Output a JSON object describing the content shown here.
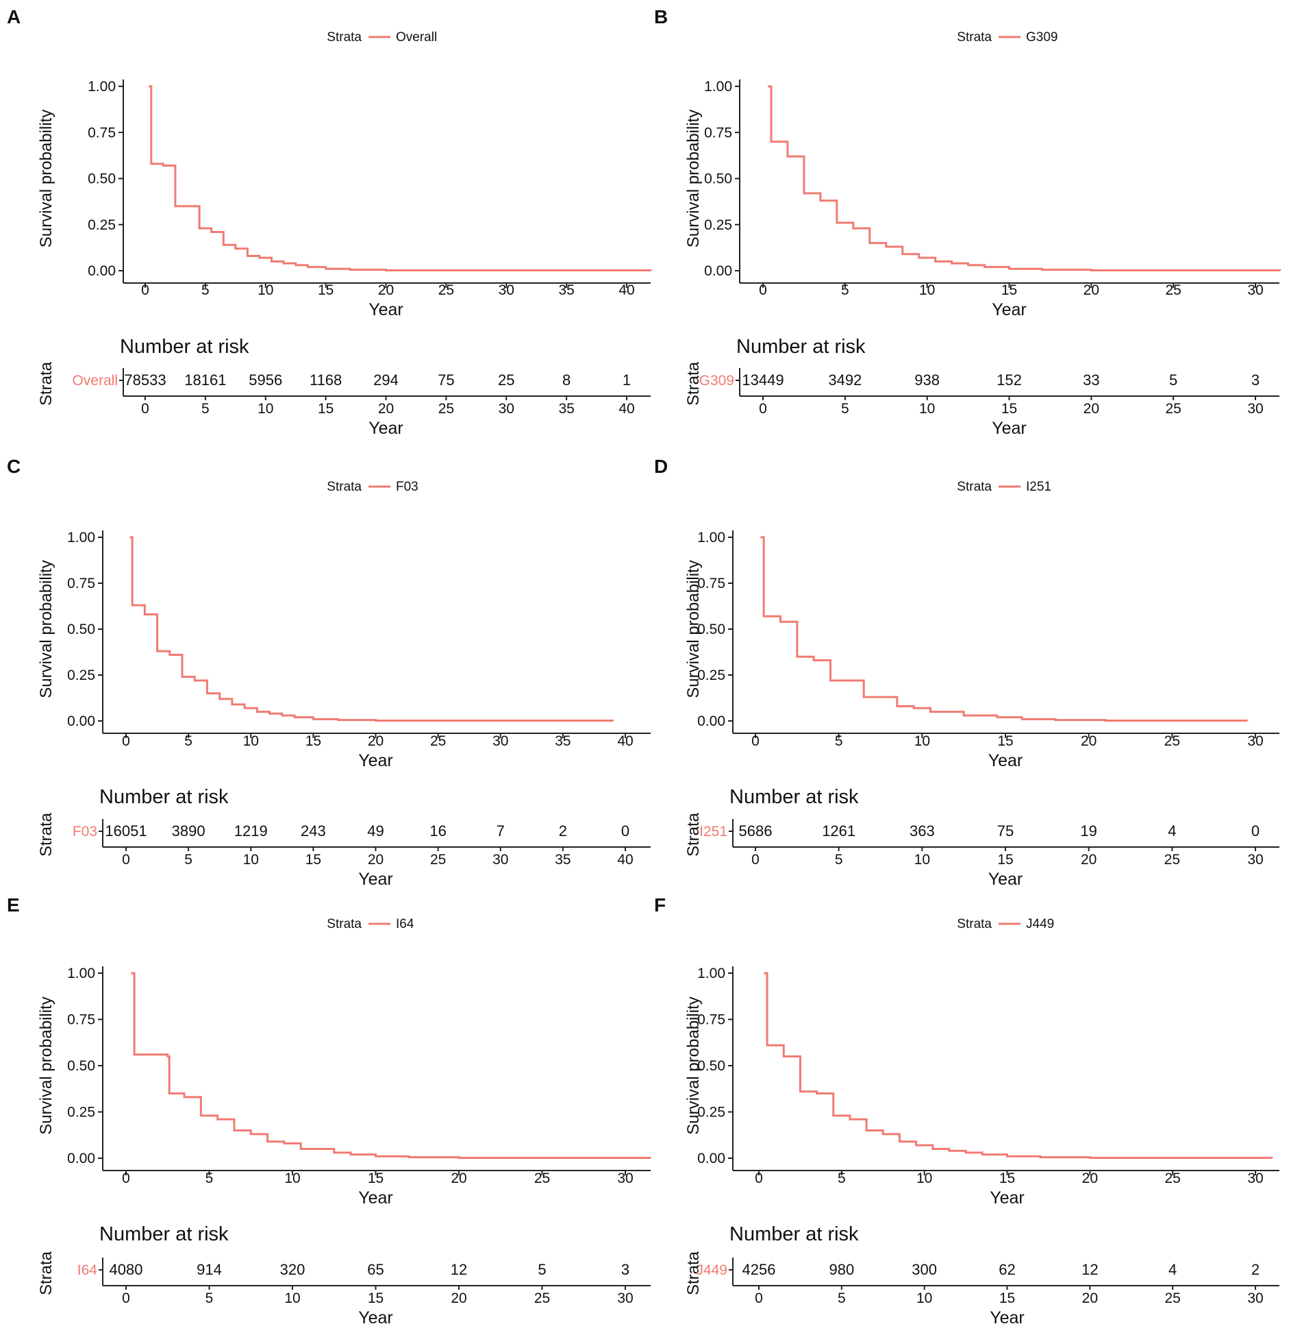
{
  "figure": {
    "curve_color": "#f07b72",
    "axis_color": "#222222",
    "text_color": "#111111",
    "legend_title": "Strata",
    "ylabel": "Survival probability",
    "xlabel": "Year",
    "risk_title": "Number at risk",
    "risk_ylabel": "Strata",
    "yticks": [
      "1.00",
      "0.75",
      "0.50",
      "0.25",
      "0.00"
    ]
  },
  "chart_data": [
    {
      "panel": "A",
      "type": "line",
      "stratum": "Overall",
      "title": "",
      "xlabel": "Year",
      "ylabel": "Survival probability",
      "xlim": [
        -2,
        42
      ],
      "ylim": [
        0,
        1
      ],
      "x_ticks": [
        0,
        5,
        10,
        15,
        20,
        25,
        30,
        35,
        40
      ],
      "steps": [
        [
          0.3,
          1.0
        ],
        [
          0.5,
          0.58
        ],
        [
          1.5,
          0.57
        ],
        [
          2.5,
          0.35
        ],
        [
          4.5,
          0.23
        ],
        [
          5.5,
          0.21
        ],
        [
          6.5,
          0.14
        ],
        [
          7.5,
          0.12
        ],
        [
          8.5,
          0.08
        ],
        [
          9.5,
          0.07
        ],
        [
          10.5,
          0.05
        ],
        [
          11.5,
          0.04
        ],
        [
          12.5,
          0.03
        ],
        [
          13.5,
          0.02
        ],
        [
          15,
          0.01
        ],
        [
          17,
          0.005
        ],
        [
          20,
          0.002
        ],
        [
          42,
          0.0
        ]
      ],
      "risk_times": [
        0,
        5,
        10,
        15,
        20,
        25,
        30,
        35,
        40
      ],
      "risk_values": [
        "78533",
        "18161",
        "5956",
        "1168",
        "294",
        "75",
        "25",
        "8",
        "1"
      ]
    },
    {
      "panel": "B",
      "type": "line",
      "stratum": "G309",
      "title": "",
      "xlabel": "Year",
      "ylabel": "Survival probability",
      "xlim": [
        -1.5,
        31.5
      ],
      "ylim": [
        0,
        1
      ],
      "x_ticks": [
        0,
        5,
        10,
        15,
        20,
        25,
        30
      ],
      "steps": [
        [
          0.3,
          1.0
        ],
        [
          0.5,
          0.7
        ],
        [
          1.5,
          0.62
        ],
        [
          2.5,
          0.42
        ],
        [
          3.5,
          0.38
        ],
        [
          4.5,
          0.26
        ],
        [
          5.5,
          0.23
        ],
        [
          6.5,
          0.15
        ],
        [
          7.5,
          0.13
        ],
        [
          8.5,
          0.09
        ],
        [
          9.5,
          0.07
        ],
        [
          10.5,
          0.05
        ],
        [
          11.5,
          0.04
        ],
        [
          12.5,
          0.03
        ],
        [
          13.5,
          0.02
        ],
        [
          15,
          0.01
        ],
        [
          17,
          0.005
        ],
        [
          20,
          0.002
        ],
        [
          31.5,
          0.0
        ]
      ],
      "risk_times": [
        0,
        5,
        10,
        15,
        20,
        25,
        30
      ],
      "risk_values": [
        "13449",
        "3492",
        "938",
        "152",
        "33",
        "5",
        "3"
      ]
    },
    {
      "panel": "C",
      "type": "line",
      "stratum": "F03",
      "title": "",
      "xlabel": "Year",
      "ylabel": "Survival probability",
      "xlim": [
        -2,
        42
      ],
      "ylim": [
        0,
        1
      ],
      "x_ticks": [
        0,
        5,
        10,
        15,
        20,
        25,
        30,
        35,
        40
      ],
      "steps": [
        [
          0.3,
          1.0
        ],
        [
          0.5,
          0.63
        ],
        [
          1.5,
          0.58
        ],
        [
          2.5,
          0.38
        ],
        [
          3.5,
          0.36
        ],
        [
          4.5,
          0.24
        ],
        [
          5.5,
          0.22
        ],
        [
          6.5,
          0.15
        ],
        [
          7.5,
          0.12
        ],
        [
          8.5,
          0.09
        ],
        [
          9.5,
          0.07
        ],
        [
          10.5,
          0.05
        ],
        [
          11.5,
          0.04
        ],
        [
          12.5,
          0.03
        ],
        [
          13.5,
          0.02
        ],
        [
          15,
          0.01
        ],
        [
          17,
          0.005
        ],
        [
          20,
          0.002
        ],
        [
          39,
          0.0
        ]
      ],
      "risk_times": [
        0,
        5,
        10,
        15,
        20,
        25,
        30,
        35,
        40
      ],
      "risk_values": [
        "16051",
        "3890",
        "1219",
        "243",
        "49",
        "16",
        "7",
        "2",
        "0"
      ]
    },
    {
      "panel": "D",
      "type": "line",
      "stratum": "I251",
      "title": "",
      "xlabel": "Year",
      "ylabel": "Survival probability",
      "xlim": [
        -1.5,
        31.5
      ],
      "ylim": [
        0,
        1
      ],
      "x_ticks": [
        0,
        5,
        10,
        15,
        20,
        25,
        30
      ],
      "steps": [
        [
          0.3,
          1.0
        ],
        [
          0.5,
          0.57
        ],
        [
          1.5,
          0.54
        ],
        [
          2.5,
          0.35
        ],
        [
          3.5,
          0.33
        ],
        [
          4.5,
          0.22
        ],
        [
          6.5,
          0.13
        ],
        [
          8.5,
          0.08
        ],
        [
          9.5,
          0.07
        ],
        [
          10.5,
          0.05
        ],
        [
          12.5,
          0.03
        ],
        [
          14.5,
          0.02
        ],
        [
          16,
          0.01
        ],
        [
          18,
          0.005
        ],
        [
          21,
          0.002
        ],
        [
          29.5,
          0.0
        ]
      ],
      "risk_times": [
        0,
        5,
        10,
        15,
        20,
        25,
        30
      ],
      "risk_values": [
        "5686",
        "1261",
        "363",
        "75",
        "19",
        "4",
        "0"
      ]
    },
    {
      "panel": "E",
      "type": "line",
      "stratum": "I64",
      "title": "",
      "xlabel": "Year",
      "ylabel": "Survival probability",
      "xlim": [
        -1.5,
        31.5
      ],
      "ylim": [
        0,
        1
      ],
      "x_ticks": [
        0,
        5,
        10,
        15,
        20,
        25,
        30
      ],
      "steps": [
        [
          0.3,
          1.0
        ],
        [
          0.5,
          0.56
        ],
        [
          2.5,
          0.55
        ],
        [
          2.6,
          0.35
        ],
        [
          3.5,
          0.33
        ],
        [
          4.5,
          0.23
        ],
        [
          5.5,
          0.21
        ],
        [
          6.5,
          0.15
        ],
        [
          7.5,
          0.13
        ],
        [
          8.5,
          0.09
        ],
        [
          9.5,
          0.08
        ],
        [
          10.5,
          0.05
        ],
        [
          12.5,
          0.03
        ],
        [
          13.5,
          0.02
        ],
        [
          15,
          0.01
        ],
        [
          17,
          0.005
        ],
        [
          20,
          0.002
        ],
        [
          31.5,
          0.0
        ]
      ],
      "risk_times": [
        0,
        5,
        10,
        15,
        20,
        25,
        30
      ],
      "risk_values": [
        "4080",
        "914",
        "320",
        "65",
        "12",
        "5",
        "3"
      ]
    },
    {
      "panel": "F",
      "type": "line",
      "stratum": "J449",
      "title": "",
      "xlabel": "Year",
      "ylabel": "Survival probability",
      "xlim": [
        -1.5,
        31.5
      ],
      "ylim": [
        0,
        1
      ],
      "x_ticks": [
        0,
        5,
        10,
        15,
        20,
        25,
        30
      ],
      "steps": [
        [
          0.3,
          1.0
        ],
        [
          0.5,
          0.61
        ],
        [
          1.5,
          0.55
        ],
        [
          2.5,
          0.36
        ],
        [
          3.5,
          0.35
        ],
        [
          4.5,
          0.23
        ],
        [
          5.5,
          0.21
        ],
        [
          6.5,
          0.15
        ],
        [
          7.5,
          0.13
        ],
        [
          8.5,
          0.09
        ],
        [
          9.5,
          0.07
        ],
        [
          10.5,
          0.05
        ],
        [
          11.5,
          0.04
        ],
        [
          12.5,
          0.03
        ],
        [
          13.5,
          0.02
        ],
        [
          15,
          0.01
        ],
        [
          17,
          0.005
        ],
        [
          20,
          0.002
        ],
        [
          31,
          0.0
        ]
      ],
      "risk_times": [
        0,
        5,
        10,
        15,
        20,
        25,
        30
      ],
      "risk_values": [
        "4256",
        "980",
        "300",
        "62",
        "12",
        "4",
        "2"
      ]
    }
  ]
}
